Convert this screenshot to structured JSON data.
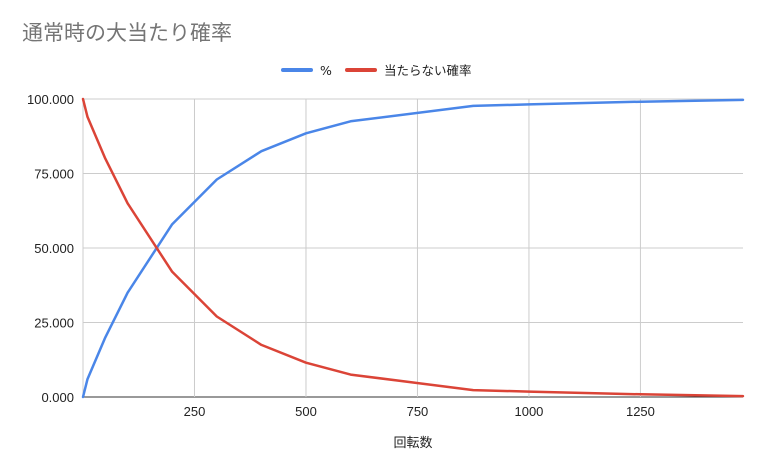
{
  "chart_data": {
    "type": "line",
    "title": "通常時の大当たり確率",
    "xlabel": "回転数",
    "ylabel": "",
    "xlim": [
      0,
      1480
    ],
    "ylim": [
      0,
      100
    ],
    "x_ticks": [
      "250",
      "500",
      "750",
      "1000",
      "1250"
    ],
    "y_ticks": [
      "0.000",
      "25.000",
      "50.000",
      "75.000",
      "100.000"
    ],
    "grid": true,
    "legend_position": "top",
    "series": [
      {
        "name": "%",
        "color": "#4a86e8",
        "x": [
          0,
          10,
          50,
          100,
          200,
          300,
          400,
          500,
          600,
          875,
          1000,
          1250,
          1480
        ],
        "y": [
          0,
          6,
          20,
          35,
          58,
          73,
          82.5,
          88.5,
          92.5,
          97.7,
          98.2,
          99.1,
          99.7
        ]
      },
      {
        "name": "当たらない確率",
        "color": "#db4437",
        "x": [
          0,
          10,
          50,
          100,
          200,
          300,
          400,
          500,
          600,
          875,
          1000,
          1250,
          1480
        ],
        "y": [
          100,
          94,
          80,
          65,
          42,
          27,
          17.5,
          11.5,
          7.5,
          2.3,
          1.8,
          0.9,
          0.3
        ]
      }
    ]
  }
}
